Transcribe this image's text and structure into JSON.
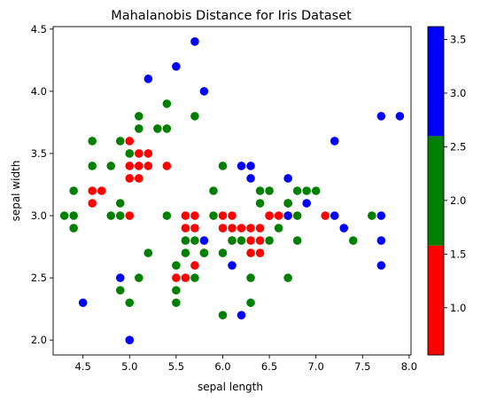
{
  "chart_data": {
    "type": "scatter",
    "title": "Mahalanobis Distance for Iris Dataset",
    "xlabel": "sepal length",
    "ylabel": "sepal width",
    "xlim": [
      4.18,
      8.02
    ],
    "ylim": [
      1.88,
      4.52
    ],
    "xticks": [
      4.5,
      5.0,
      5.5,
      6.0,
      6.5,
      7.0,
      7.5,
      8.0
    ],
    "yticks": [
      2.0,
      2.5,
      3.0,
      3.5,
      4.0,
      4.5
    ],
    "grid": false,
    "colorbar": {
      "range": [
        0.56,
        3.62
      ],
      "ticks": [
        1.0,
        1.5,
        2.0,
        2.5,
        3.0,
        3.5
      ],
      "bins": [
        {
          "from": 0.56,
          "to": 1.58,
          "color": "#ff0000"
        },
        {
          "from": 1.58,
          "to": 2.6,
          "color": "#008000"
        },
        {
          "from": 2.6,
          "to": 3.62,
          "color": "#0000ff"
        }
      ]
    },
    "series": [
      {
        "color": "#ff0000",
        "points": [
          [
            4.6,
            3.2
          ],
          [
            4.6,
            3.1
          ],
          [
            4.7,
            3.2
          ],
          [
            5.0,
            3.6
          ],
          [
            5.0,
            3.4
          ],
          [
            5.0,
            3.3
          ],
          [
            5.0,
            3.0
          ],
          [
            5.1,
            3.5
          ],
          [
            5.1,
            3.4
          ],
          [
            5.1,
            3.3
          ],
          [
            5.2,
            3.5
          ],
          [
            5.2,
            3.4
          ],
          [
            5.4,
            3.4
          ],
          [
            5.5,
            2.5
          ],
          [
            5.6,
            3.0
          ],
          [
            5.6,
            2.9
          ],
          [
            5.6,
            2.5
          ],
          [
            5.7,
            3.0
          ],
          [
            5.7,
            2.9
          ],
          [
            5.7,
            2.6
          ],
          [
            5.8,
            2.7
          ],
          [
            6.0,
            3.0
          ],
          [
            6.0,
            2.9
          ],
          [
            6.1,
            3.0
          ],
          [
            6.1,
            2.9
          ],
          [
            6.1,
            2.8
          ],
          [
            6.2,
            2.9
          ],
          [
            6.3,
            2.9
          ],
          [
            6.3,
            2.8
          ],
          [
            6.3,
            2.7
          ],
          [
            6.4,
            2.9
          ],
          [
            6.4,
            2.8
          ],
          [
            6.4,
            2.7
          ],
          [
            6.5,
            3.0
          ],
          [
            6.5,
            3.0
          ],
          [
            6.6,
            3.0
          ],
          [
            6.7,
            3.0
          ],
          [
            6.7,
            3.1
          ],
          [
            7.1,
            3.0
          ]
        ]
      },
      {
        "color": "#008000",
        "points": [
          [
            4.3,
            3.0
          ],
          [
            4.4,
            3.2
          ],
          [
            4.4,
            3.0
          ],
          [
            4.4,
            2.9
          ],
          [
            4.6,
            3.6
          ],
          [
            4.6,
            3.4
          ],
          [
            4.8,
            3.4
          ],
          [
            4.8,
            3.0
          ],
          [
            4.9,
            3.6
          ],
          [
            4.9,
            3.1
          ],
          [
            4.9,
            3.0
          ],
          [
            4.9,
            2.4
          ],
          [
            5.0,
            3.5
          ],
          [
            5.0,
            2.3
          ],
          [
            5.1,
            3.8
          ],
          [
            5.1,
            3.7
          ],
          [
            5.1,
            2.5
          ],
          [
            5.2,
            2.7
          ],
          [
            5.3,
            3.7
          ],
          [
            5.4,
            3.9
          ],
          [
            5.4,
            3.7
          ],
          [
            5.4,
            3.0
          ],
          [
            5.5,
            2.6
          ],
          [
            5.5,
            2.4
          ],
          [
            5.5,
            2.3
          ],
          [
            5.6,
            2.8
          ],
          [
            5.6,
            2.7
          ],
          [
            5.7,
            3.8
          ],
          [
            5.7,
            2.8
          ],
          [
            5.7,
            2.5
          ],
          [
            5.8,
            2.7
          ],
          [
            5.9,
            3.2
          ],
          [
            5.9,
            3.0
          ],
          [
            6.0,
            3.4
          ],
          [
            6.0,
            2.7
          ],
          [
            6.0,
            2.2
          ],
          [
            6.1,
            2.8
          ],
          [
            6.2,
            2.8
          ],
          [
            6.3,
            2.5
          ],
          [
            6.3,
            2.3
          ],
          [
            6.4,
            3.2
          ],
          [
            6.4,
            3.1
          ],
          [
            6.5,
            3.2
          ],
          [
            6.5,
            2.8
          ],
          [
            6.6,
            2.9
          ],
          [
            6.7,
            3.1
          ],
          [
            6.7,
            3.1
          ],
          [
            6.7,
            2.5
          ],
          [
            6.8,
            3.2
          ],
          [
            6.8,
            3.0
          ],
          [
            6.8,
            2.8
          ],
          [
            6.9,
            3.2
          ],
          [
            7.0,
            3.2
          ],
          [
            7.4,
            2.8
          ],
          [
            7.6,
            3.0
          ]
        ]
      },
      {
        "color": "#0000ff",
        "points": [
          [
            4.5,
            2.3
          ],
          [
            4.9,
            2.5
          ],
          [
            5.0,
            2.0
          ],
          [
            5.2,
            4.1
          ],
          [
            5.5,
            4.2
          ],
          [
            5.7,
            4.4
          ],
          [
            5.8,
            4.0
          ],
          [
            5.8,
            2.8
          ],
          [
            6.1,
            2.6
          ],
          [
            6.2,
            3.4
          ],
          [
            6.2,
            2.2
          ],
          [
            6.3,
            3.4
          ],
          [
            6.3,
            3.3
          ],
          [
            6.7,
            3.3
          ],
          [
            6.7,
            3.0
          ],
          [
            6.9,
            3.1
          ],
          [
            7.2,
            3.6
          ],
          [
            7.2,
            3.0
          ],
          [
            7.3,
            2.9
          ],
          [
            7.7,
            3.8
          ],
          [
            7.7,
            3.0
          ],
          [
            7.7,
            2.8
          ],
          [
            7.7,
            2.6
          ],
          [
            7.9,
            3.8
          ]
        ]
      }
    ]
  }
}
